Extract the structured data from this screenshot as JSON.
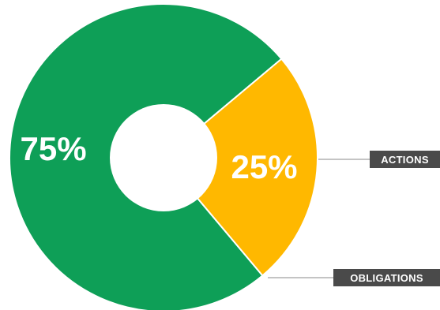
{
  "chart_data": {
    "type": "pie",
    "variant": "donut",
    "slices": [
      {
        "label": "ACTIONS",
        "value": 25,
        "display": "25%",
        "color": "#FFB800"
      },
      {
        "label": "OBLIGATIONS",
        "value": 75,
        "display": "75%",
        "color": "#0E9F57"
      }
    ],
    "callout_color": "#4A4A4A",
    "leader_color": "#8A8A8A"
  }
}
